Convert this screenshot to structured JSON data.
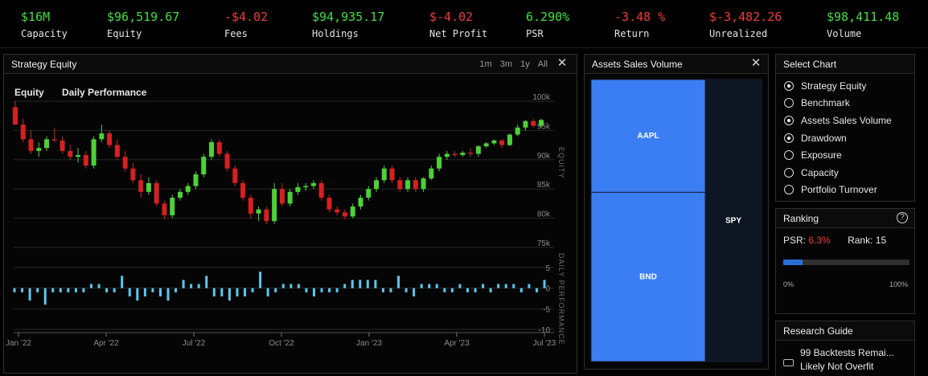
{
  "stats": [
    {
      "value": "$16M",
      "label": "Capacity",
      "tone": "pos"
    },
    {
      "value": "$96,519.67",
      "label": "Equity",
      "tone": "pos"
    },
    {
      "value": "-$4.02",
      "label": "Fees",
      "tone": "neg"
    },
    {
      "value": "$94,935.17",
      "label": "Holdings",
      "tone": "pos"
    },
    {
      "value": "$-4.02",
      "label": "Net Profit",
      "tone": "neg"
    },
    {
      "value": "6.290%",
      "label": "PSR",
      "tone": "pos"
    },
    {
      "value": "-3.48 %",
      "label": "Return",
      "tone": "neg"
    },
    {
      "value": "$-3,482.26",
      "label": "Unrealized",
      "tone": "neg"
    },
    {
      "value": "$98,411.48",
      "label": "Volume",
      "tone": "pos"
    }
  ],
  "equity_panel": {
    "title": "Strategy Equity",
    "ranges": [
      "1m",
      "3m",
      "1y",
      "All"
    ],
    "tabs": [
      "Equity",
      "Daily Performance"
    ],
    "equity_axis": {
      "label": "EQUITY",
      "ticks": [
        "100k",
        "95k",
        "90k",
        "85k",
        "80k",
        "75k"
      ],
      "tick_values": [
        100,
        95,
        90,
        85,
        80,
        75
      ]
    },
    "perf_axis": {
      "label": "DAILY PERFORMANCE",
      "ticks": [
        "5",
        "0",
        "-5",
        "-10"
      ],
      "tick_values": [
        5,
        0,
        -5,
        -10
      ]
    },
    "x_ticks": [
      "Jan '22",
      "Apr '22",
      "Jul '22",
      "Oct '22",
      "Jan '23",
      "Apr '23",
      "Jul '23"
    ]
  },
  "chart_data": [
    {
      "type": "candlestick",
      "title": "Equity",
      "units": "k",
      "up_color": "#4cd137",
      "down_color": "#d62020",
      "candles": [
        [
          99,
          100,
          96,
          96
        ],
        [
          96,
          97,
          93,
          93.5
        ],
        [
          93.5,
          95,
          91,
          91.5
        ],
        [
          91.5,
          93,
          90.5,
          92
        ],
        [
          92,
          94,
          91.5,
          93.5
        ],
        [
          93.5,
          95.5,
          93,
          93.3
        ],
        [
          93.3,
          94,
          91,
          91.5
        ],
        [
          91.5,
          92.5,
          90,
          90.5
        ],
        [
          90.5,
          92,
          89.5,
          90.8
        ],
        [
          90.8,
          91.5,
          88.5,
          89
        ],
        [
          89,
          94,
          88.5,
          93.5
        ],
        [
          93.5,
          96,
          93,
          94.5
        ],
        [
          94.5,
          95,
          92,
          92.5
        ],
        [
          92.5,
          93.5,
          90,
          90.5
        ],
        [
          90.5,
          91.5,
          88,
          88.5
        ],
        [
          88.5,
          89.5,
          86,
          86.5
        ],
        [
          86.5,
          87.5,
          83.5,
          84.5
        ],
        [
          84.5,
          87,
          84,
          86
        ],
        [
          86,
          86.5,
          82,
          82.5
        ],
        [
          82.5,
          83,
          79.8,
          80.5
        ],
        [
          80.5,
          84,
          80,
          83.5
        ],
        [
          83.5,
          85,
          83,
          84.5
        ],
        [
          84.5,
          86,
          84,
          85.5
        ],
        [
          85.5,
          88,
          85,
          87.5
        ],
        [
          87.5,
          91,
          87,
          90.5
        ],
        [
          90.5,
          93.5,
          90,
          93
        ],
        [
          93,
          93.5,
          90.5,
          91
        ],
        [
          91,
          91.5,
          88,
          88.5
        ],
        [
          88.5,
          89,
          85.5,
          86
        ],
        [
          86,
          86.5,
          83,
          83.5
        ],
        [
          83.5,
          84,
          80,
          80.8
        ],
        [
          80.8,
          82,
          79.5,
          81.5
        ],
        [
          81.5,
          82,
          79,
          79.5
        ],
        [
          79.5,
          86,
          79,
          85
        ],
        [
          85,
          86,
          82,
          82.5
        ],
        [
          82.5,
          85,
          82,
          84.5
        ],
        [
          84.5,
          86,
          84,
          85.3
        ],
        [
          85.3,
          86,
          84.7,
          85.5
        ],
        [
          85.5,
          86.5,
          85,
          86
        ],
        [
          86,
          86.5,
          83,
          83.5
        ],
        [
          83.5,
          84,
          81,
          81.5
        ],
        [
          81.5,
          82,
          80.5,
          81
        ],
        [
          81,
          81.5,
          79.8,
          80.3
        ],
        [
          80.3,
          82.5,
          80,
          82
        ],
        [
          82,
          84,
          81.5,
          83.5
        ],
        [
          83.5,
          85.5,
          83,
          85
        ],
        [
          85,
          87,
          84.5,
          86.5
        ],
        [
          86.5,
          89,
          86,
          88.5
        ],
        [
          88.5,
          89,
          86,
          86.5
        ],
        [
          86.5,
          87,
          84.5,
          85
        ],
        [
          85,
          87,
          84.5,
          86.5
        ],
        [
          86.5,
          87,
          84.5,
          85
        ],
        [
          85,
          87,
          84.5,
          86.8
        ],
        [
          86.8,
          89,
          86.5,
          88.5
        ],
        [
          88.5,
          91,
          88,
          90.5
        ],
        [
          90.5,
          91.5,
          90,
          91
        ],
        [
          91,
          91.5,
          90.5,
          90.8
        ],
        [
          90.8,
          91.5,
          90.5,
          91.2
        ],
        [
          91.2,
          92,
          90.5,
          91
        ],
        [
          91,
          92.5,
          90.5,
          92.3
        ],
        [
          92.3,
          93,
          92,
          92.8
        ],
        [
          92.8,
          93.5,
          92.5,
          93.3
        ],
        [
          93.3,
          93.5,
          92,
          92.5
        ],
        [
          92.5,
          94.5,
          92.3,
          94.3
        ],
        [
          94.3,
          96,
          94,
          95.5
        ],
        [
          95.5,
          96.8,
          95,
          96.6
        ],
        [
          96.6,
          97,
          95.5,
          95.8
        ],
        [
          95.8,
          97,
          95.5,
          96.8
        ]
      ]
    },
    {
      "type": "bar",
      "title": "Daily Performance",
      "color": "#5ac8f0",
      "values": [
        -1,
        -1,
        -3,
        -1,
        -4,
        -1,
        -1,
        -1,
        -1,
        -1,
        1,
        1,
        -1,
        -1,
        3,
        -2,
        -3,
        -2,
        -1,
        -2,
        -3,
        -1,
        2,
        1,
        1,
        3,
        -2,
        -2,
        -3,
        -2,
        -2,
        -1,
        4,
        -2,
        -1,
        1,
        1,
        1,
        -1,
        -2,
        -1,
        -1,
        -1,
        1,
        2,
        2,
        2,
        2,
        -1,
        -1,
        3,
        -1,
        -2,
        1,
        1,
        1,
        -1,
        -1,
        1,
        -1,
        -1,
        1,
        -1,
        1,
        1,
        1,
        -1,
        1,
        -1,
        2
      ]
    }
  ],
  "sales_panel": {
    "title": "Assets Sales Volume",
    "treemap": [
      {
        "name": "AAPL",
        "share": 0.3,
        "color": "#3b7ef4"
      },
      {
        "name": "BND",
        "share": 0.45,
        "color": "#3b7ef4"
      },
      {
        "name": "SPY",
        "share": 0.25,
        "color": "#0f1623"
      }
    ]
  },
  "select_chart": {
    "title": "Select Chart",
    "options": [
      {
        "label": "Strategy Equity",
        "checked": true
      },
      {
        "label": "Benchmark",
        "checked": false
      },
      {
        "label": "Assets Sales Volume",
        "checked": true
      },
      {
        "label": "Drawdown",
        "checked": true
      },
      {
        "label": "Exposure",
        "checked": false
      },
      {
        "label": "Capacity",
        "checked": false
      },
      {
        "label": "Portfolio Turnover",
        "checked": false
      }
    ]
  },
  "ranking": {
    "title": "Ranking",
    "psr_label": "PSR:",
    "psr_value": "6.3%",
    "rank_label": "Rank:",
    "rank_value": "15",
    "progress": 0.15,
    "min_label": "0%",
    "max_label": "100%"
  },
  "research_guide": {
    "title": "Research Guide",
    "line1": "99 Backtests Remai...",
    "line2": "Likely Not Overfit"
  }
}
